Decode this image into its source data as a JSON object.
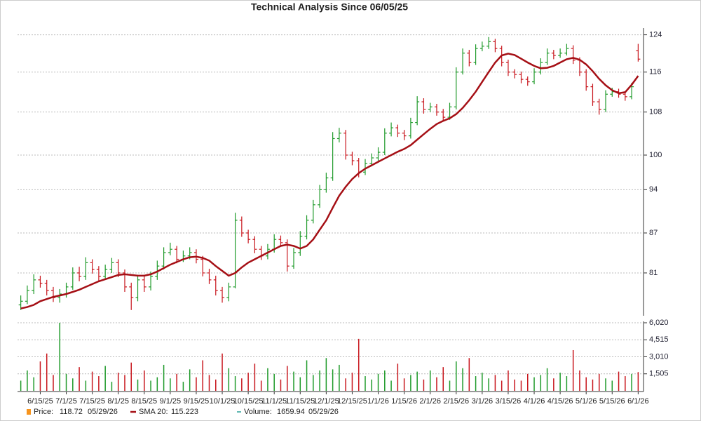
{
  "chart_data": [
    {
      "type": "ohlc",
      "title": "Technical Analysis Since 06/05/25",
      "last_date": "05/29/26",
      "log": true,
      "grid": true,
      "up_color": "#1f9a2a",
      "down_color": "#c8161d",
      "ylim": [
        75.5,
        125.5
      ],
      "yticks": [
        81,
        87,
        94,
        100,
        108,
        116,
        124
      ],
      "categories": [
        null,
        null,
        null,
        "6/15/25",
        null,
        null,
        null,
        "7/1/25",
        null,
        null,
        null,
        "7/15/25",
        null,
        null,
        null,
        "8/1/25",
        null,
        null,
        null,
        "8/15/25",
        null,
        null,
        null,
        "9/1/25",
        null,
        null,
        null,
        "9/15/25",
        null,
        null,
        null,
        "10/1/25",
        null,
        null,
        null,
        "10/15/25",
        null,
        null,
        null,
        "11/1/25",
        null,
        null,
        null,
        "11/15/25",
        null,
        null,
        null,
        "12/1/25",
        null,
        null,
        null,
        "12/15/25",
        null,
        null,
        null,
        "1/1/26",
        null,
        null,
        null,
        "1/15/26",
        null,
        null,
        null,
        "2/1/26",
        null,
        null,
        null,
        "2/15/26",
        null,
        null,
        null,
        "3/1/26",
        null,
        null,
        null,
        "3/15/26",
        null,
        null,
        null,
        "4/1/26",
        null,
        null,
        null,
        "4/15/26",
        null,
        null,
        null,
        "5/1/26",
        null,
        null,
        null,
        "5/15/26",
        null,
        null,
        null,
        "6/1/26"
      ],
      "series": [
        {
          "name": "Price:",
          "type": "ohlc",
          "color": "#f7941d",
          "values": [
            [
              76.5,
              77.8,
              75.8,
              77
            ],
            [
              77,
              79.2,
              76.6,
              78.5
            ],
            [
              78.5,
              80.8,
              78,
              80
            ],
            [
              80,
              80.6,
              78.9,
              79.5
            ],
            [
              79.5,
              80,
              77.8,
              78.5
            ],
            [
              78.5,
              79,
              76.9,
              77.5
            ],
            [
              77.5,
              78.7,
              76.8,
              78
            ],
            [
              78,
              79.6,
              77.5,
              79
            ],
            [
              79,
              81.8,
              78.6,
              81
            ],
            [
              81,
              81.9,
              79.8,
              80.5
            ],
            [
              80.5,
              83.3,
              80,
              82.5
            ],
            [
              82.5,
              83,
              80.9,
              81.5
            ],
            [
              81.5,
              82,
              79.8,
              80.5
            ],
            [
              80.5,
              82.2,
              80,
              81.5
            ],
            [
              81.5,
              83.2,
              81,
              82.5
            ],
            [
              82.5,
              83,
              80.4,
              81
            ],
            [
              81,
              81.5,
              78.3,
              79
            ],
            [
              79,
              79.6,
              75.8,
              77.5
            ],
            [
              77.5,
              80.7,
              77,
              80
            ],
            [
              80,
              80.5,
              78.3,
              79
            ],
            [
              79,
              81.2,
              78.5,
              80.5
            ],
            [
              80.5,
              82.8,
              80,
              82
            ],
            [
              82,
              84.8,
              81.5,
              84
            ],
            [
              84,
              85.5,
              83.6,
              84.5
            ],
            [
              84.5,
              85,
              82.4,
              83
            ],
            [
              83,
              84.3,
              82.6,
              83.5
            ],
            [
              83.5,
              84.8,
              83,
              84
            ],
            [
              84,
              84.5,
              82.4,
              83
            ],
            [
              83,
              83.5,
              80.5,
              81
            ],
            [
              81,
              81.6,
              79.4,
              80
            ],
            [
              80,
              80.6,
              77.8,
              78.5
            ],
            [
              78.5,
              79,
              76.8,
              77.5
            ],
            [
              77.5,
              79.6,
              77,
              79
            ],
            [
              79,
              90.2,
              78.8,
              89
            ],
            [
              89,
              89.6,
              86.4,
              87
            ],
            [
              87,
              87.5,
              85.4,
              86
            ],
            [
              86,
              86.5,
              83.9,
              84.5
            ],
            [
              84.5,
              85,
              82.9,
              83.5
            ],
            [
              83.5,
              85.3,
              83,
              84.5
            ],
            [
              84.5,
              86.8,
              84,
              86
            ],
            [
              86,
              86.6,
              85,
              85.5
            ],
            [
              85.5,
              86,
              81.2,
              82
            ],
            [
              82,
              84.7,
              81.6,
              84
            ],
            [
              84,
              87.3,
              83.5,
              86.5
            ],
            [
              86.5,
              89.8,
              86,
              89
            ],
            [
              89,
              92.3,
              88.5,
              91.5
            ],
            [
              91.5,
              94.8,
              91,
              94
            ],
            [
              94,
              96.9,
              93.5,
              96
            ],
            [
              96,
              104.2,
              95.5,
              103
            ],
            [
              103,
              105,
              102.3,
              104
            ],
            [
              104,
              104.6,
              99.2,
              100
            ],
            [
              100,
              100.6,
              98.2,
              99
            ],
            [
              99,
              99.5,
              96.1,
              97
            ],
            [
              97,
              99.3,
              96.5,
              98.5
            ],
            [
              98.5,
              100.3,
              98,
              99.5
            ],
            [
              99.5,
              101.4,
              99,
              100.5
            ],
            [
              100.5,
              104.9,
              100,
              104
            ],
            [
              104,
              106,
              103.4,
              105
            ],
            [
              105,
              105.6,
              103.3,
              104
            ],
            [
              104,
              104.6,
              102.7,
              103.5
            ],
            [
              103.5,
              106.9,
              103,
              106
            ],
            [
              106,
              111.1,
              105.5,
              110
            ],
            [
              110,
              110.7,
              107.7,
              108.5
            ],
            [
              108.5,
              109.8,
              108,
              109
            ],
            [
              109,
              109.6,
              107.3,
              108
            ],
            [
              108,
              108.6,
              106.2,
              107
            ],
            [
              107,
              109.8,
              106.5,
              109
            ],
            [
              109,
              117,
              108.5,
              116
            ],
            [
              116,
              121,
              115.5,
              120
            ],
            [
              120,
              120.7,
              117.2,
              118
            ],
            [
              118,
              121.9,
              117.5,
              121
            ],
            [
              121,
              122.5,
              120.4,
              121.5
            ],
            [
              121.5,
              123.5,
              120.9,
              122.5
            ],
            [
              122.5,
              123.1,
              120.2,
              121
            ],
            [
              121,
              121.6,
              117.2,
              118
            ],
            [
              118,
              118.6,
              115.2,
              116
            ],
            [
              116,
              116.6,
              114.7,
              115.5
            ],
            [
              115.5,
              116.1,
              113.7,
              114.5
            ],
            [
              114.5,
              115.1,
              113.2,
              114
            ],
            [
              114,
              116.8,
              113.5,
              116
            ],
            [
              116,
              118.9,
              115.5,
              118
            ],
            [
              118,
              121,
              117.5,
              120
            ],
            [
              120,
              120.7,
              118.7,
              119.5
            ],
            [
              119.5,
              121,
              119,
              120
            ],
            [
              120,
              122,
              119.5,
              121
            ],
            [
              121,
              121.7,
              117.7,
              118.5
            ],
            [
              118.5,
              119.1,
              115.2,
              116
            ],
            [
              116,
              116.6,
              112.2,
              113
            ],
            [
              113,
              113.6,
              109.2,
              110
            ],
            [
              110,
              110.6,
              107.5,
              108.5
            ],
            [
              108.5,
              112.3,
              108,
              111.5
            ],
            [
              111.5,
              112.8,
              111,
              112
            ],
            [
              112,
              112.6,
              110.8,
              111.5
            ],
            [
              111.5,
              112.1,
              110.2,
              111
            ],
            [
              111,
              113.8,
              110.5,
              113
            ],
            [
              120.5,
              122,
              118.2,
              118.72
            ]
          ]
        },
        {
          "name": "SMA 20:",
          "type": "line",
          "color": "#a50f15",
          "values": [
            76,
            76.2,
            76.5,
            77,
            77.3,
            77.6,
            77.8,
            78,
            78.3,
            78.6,
            79,
            79.4,
            79.8,
            80.1,
            80.4,
            80.7,
            80.8,
            80.7,
            80.6,
            80.6,
            80.8,
            81.2,
            81.7,
            82.2,
            82.6,
            83,
            83.3,
            83.4,
            83.2,
            82.8,
            82,
            81.3,
            80.6,
            81,
            81.8,
            82.5,
            83,
            83.5,
            84,
            84.5,
            85,
            85.2,
            85,
            84.6,
            85,
            86,
            87.5,
            89,
            91,
            93,
            94.5,
            95.8,
            96.8,
            97.6,
            98.2,
            98.8,
            99.4,
            100,
            100.6,
            101.1,
            101.8,
            102.8,
            103.8,
            104.8,
            105.7,
            106.3,
            106.8,
            107.6,
            108.8,
            110.3,
            112,
            114,
            116,
            118,
            119.5,
            119.9,
            119.6,
            118.8,
            118,
            117.3,
            116.8,
            116.9,
            117.3,
            118,
            118.7,
            119,
            118.6,
            117.6,
            116.2,
            114.6,
            113.3,
            112.3,
            111.7,
            111.9,
            113.4,
            115.223
          ]
        }
      ]
    },
    {
      "type": "volume",
      "name": "Volume:",
      "color": "#2aa198",
      "grid": true,
      "ylim": [
        0,
        6020
      ],
      "yticks": [
        {
          "value": 1505,
          "label": "1,505"
        },
        {
          "value": 3010,
          "label": "3,010"
        },
        {
          "value": 4515,
          "label": "4,515"
        },
        {
          "value": 6020,
          "label": "6,020"
        }
      ],
      "values": [
        900,
        1800,
        1200,
        2600,
        3300,
        1400,
        6020,
        1500,
        1100,
        2100,
        900,
        1700,
        1300,
        2200,
        800,
        1600,
        1400,
        2500,
        1000,
        1800,
        900,
        1200,
        2300,
        1100,
        1500,
        800,
        1900,
        1200,
        2700,
        1400,
        1000,
        3300,
        2000,
        1300,
        1100,
        1600,
        2400,
        900,
        2000,
        1500,
        1000,
        2200,
        1700,
        1200,
        2700,
        1400,
        1800,
        2900,
        1900,
        2300,
        1100,
        1600,
        4600,
        1300,
        1000,
        1500,
        1800,
        900,
        2400,
        1100,
        1400,
        1700,
        1000,
        1800,
        1200,
        2100,
        900,
        2600,
        2000,
        2900,
        1300,
        1600,
        1100,
        1400,
        900,
        1800,
        1000,
        900,
        1500,
        1200,
        1400,
        2000,
        1100,
        1600,
        1300,
        3600,
        1800,
        1200,
        1000,
        1500,
        1100,
        900,
        1700,
        1300,
        1500,
        1659.94
      ]
    }
  ]
}
